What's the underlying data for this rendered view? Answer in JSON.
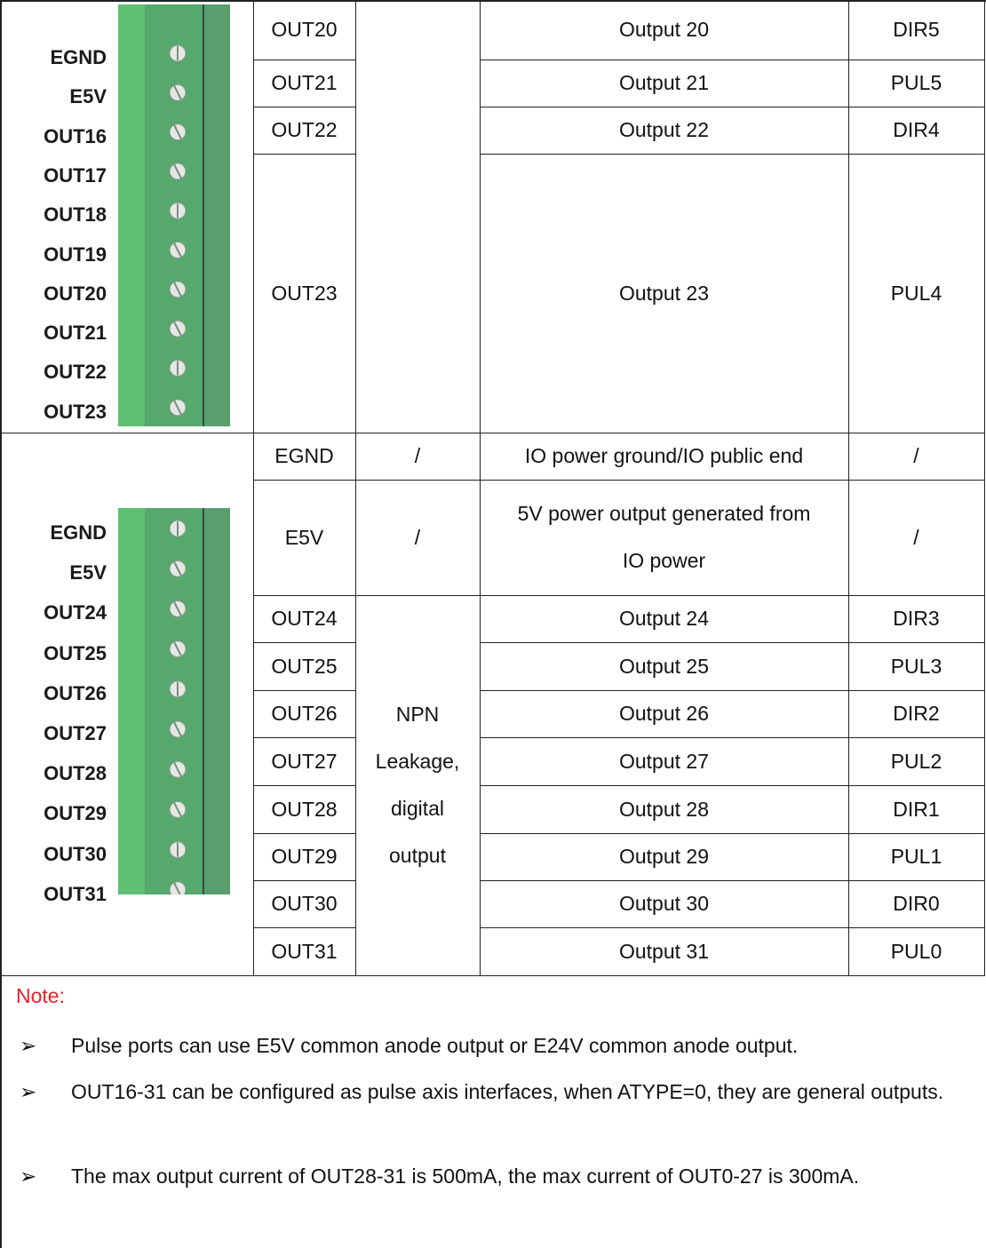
{
  "connector_top": {
    "labels": [
      "EGND",
      "E5V",
      "OUT16",
      "OUT17",
      "OUT18",
      "OUT19",
      "OUT20",
      "OUT21",
      "OUT22",
      "OUT23"
    ]
  },
  "connector_bottom": {
    "labels": [
      "EGND",
      "E5V",
      "OUT24",
      "OUT25",
      "OUT26",
      "OUT27",
      "OUT28",
      "OUT29",
      "OUT30",
      "OUT31"
    ]
  },
  "top_rows": [
    {
      "name": "OUT20",
      "description": "Output 20",
      "pulse": "DIR5"
    },
    {
      "name": "OUT21",
      "description": "Output 21",
      "pulse": "PUL5"
    },
    {
      "name": "OUT22",
      "description": "Output 22",
      "pulse": "DIR4"
    },
    {
      "name": "OUT23",
      "description": "Output 23",
      "pulse": "PUL4"
    }
  ],
  "bottom_rows": [
    {
      "name": "EGND",
      "type": "/",
      "description": "IO power ground/IO public end",
      "pulse": "/"
    },
    {
      "name": "E5V",
      "type": "/",
      "description": "5V power output generated from IO power",
      "pulse": "/"
    },
    {
      "name": "OUT24",
      "description": "Output 24",
      "pulse": "DIR3"
    },
    {
      "name": "OUT25",
      "description": "Output 25",
      "pulse": "PUL3"
    },
    {
      "name": "OUT26",
      "description": "Output 26",
      "pulse": "DIR2"
    },
    {
      "name": "OUT27",
      "description": "Output 27",
      "pulse": "PUL2"
    },
    {
      "name": "OUT28",
      "description": "Output 28",
      "pulse": "DIR1"
    },
    {
      "name": "OUT29",
      "description": "Output 29",
      "pulse": "PUL1"
    },
    {
      "name": "OUT30",
      "description": "Output 30",
      "pulse": "DIR0"
    },
    {
      "name": "OUT31",
      "description": "Output 31",
      "pulse": "PUL0"
    }
  ],
  "merged_type": "NPN Leakage, digital output",
  "note": {
    "title": "Note:",
    "items": [
      "Pulse ports can use E5V common anode output or E24V common anode output.",
      "OUT16-31 can be configured as pulse axis interfaces, when ATYPE=0, they are general outputs.",
      "The max output current of OUT28-31 is 500mA, the max current of OUT0-27 is 300mA."
    ]
  }
}
